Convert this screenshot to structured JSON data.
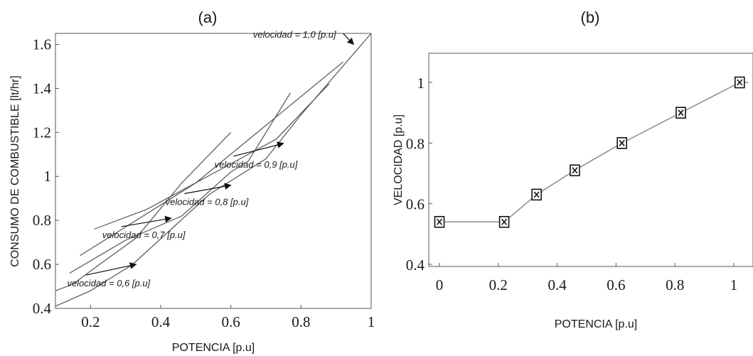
{
  "chart_data": [
    {
      "panel_label": "(a)",
      "type": "line",
      "xlabel": "POTENCIA [p.u]",
      "ylabel": "CONSUMO DE COMBUSTIBLE [lt/hr]",
      "xlim": [
        0.1,
        1.0
      ],
      "ylim": [
        0.4,
        1.65
      ],
      "xticks": [
        "0.2",
        "0.4",
        "0.6",
        "0.8",
        "1"
      ],
      "yticks": [
        "0.4",
        "0.6",
        "0.8",
        "1",
        "1.2",
        "1.4",
        "1.6"
      ],
      "grid": false,
      "legend": "none",
      "series": [
        {
          "x": [
            0.1,
            0.15,
            0.2,
            0.33,
            0.46,
            0.6
          ],
          "y": [
            0.48,
            0.51,
            0.57,
            0.72,
            0.97,
            1.2
          ],
          "color": "#555555"
        },
        {
          "x": [
            0.14,
            0.3,
            0.46,
            0.6,
            0.65,
            0.77
          ],
          "y": [
            0.56,
            0.71,
            0.82,
            1.02,
            1.07,
            1.38
          ]
        },
        {
          "x": [
            0.17,
            0.5,
            0.92
          ],
          "y": [
            0.64,
            0.97,
            1.52
          ]
        },
        {
          "x": [
            0.21,
            0.36,
            0.58,
            0.73,
            0.88
          ],
          "y": [
            0.76,
            0.85,
            1.04,
            1.17,
            1.42
          ]
        },
        {
          "x": [
            0.1,
            0.2,
            0.32,
            0.43,
            0.54,
            0.7,
            0.8,
            1.0
          ],
          "y": [
            0.41,
            0.48,
            0.6,
            0.76,
            0.92,
            1.08,
            1.28,
            1.65
          ]
        }
      ],
      "annotations": [
        {
          "text": "velocidad = 1,0 [p.u]",
          "ax": 0.95,
          "ay": 1.6,
          "tx": 0.9,
          "ty": 1.63
        },
        {
          "text": "velocidad = 0,9 [p.u]",
          "ax": 0.75,
          "ay": 1.15,
          "tx": 0.79,
          "ty": 1.04
        },
        {
          "text": "velocidad = 0,8 [p.u]",
          "ax": 0.6,
          "ay": 0.96,
          "tx": 0.65,
          "ty": 0.87
        },
        {
          "text": "velocidad = 0,7 [p.u]",
          "ax": 0.43,
          "ay": 0.81,
          "tx": 0.47,
          "ty": 0.72
        },
        {
          "text": "velocidad = 0,6 [p.u]",
          "ax": 0.33,
          "ay": 0.6,
          "tx": 0.37,
          "ty": 0.5
        }
      ]
    },
    {
      "panel_label": "(b)",
      "type": "line",
      "xlabel": "POTENCIA [p.u]",
      "ylabel": "VELOCIDAD [p.u]",
      "xlim": [
        0,
        1.05
      ],
      "ylim": [
        0.4,
        1.08
      ],
      "xticks": [
        "0",
        "0.2",
        "0.4",
        "0.6",
        "0.8",
        "1"
      ],
      "yticks": [
        "0.4",
        "0.6",
        "0.8",
        "1"
      ],
      "grid": false,
      "legend": "none",
      "series": [
        {
          "x": [
            0,
            0.22,
            0.33,
            0.46,
            0.62,
            0.82,
            1.02,
            1.05
          ],
          "y": [
            0.54,
            0.54,
            0.63,
            0.71,
            0.8,
            0.9,
            1.0,
            1.0
          ],
          "markers": [
            0,
            0.22,
            0.33,
            0.46,
            0.62,
            0.82,
            1.02
          ],
          "marker": "boxed-x",
          "color": "#8c8c8c"
        }
      ]
    }
  ]
}
